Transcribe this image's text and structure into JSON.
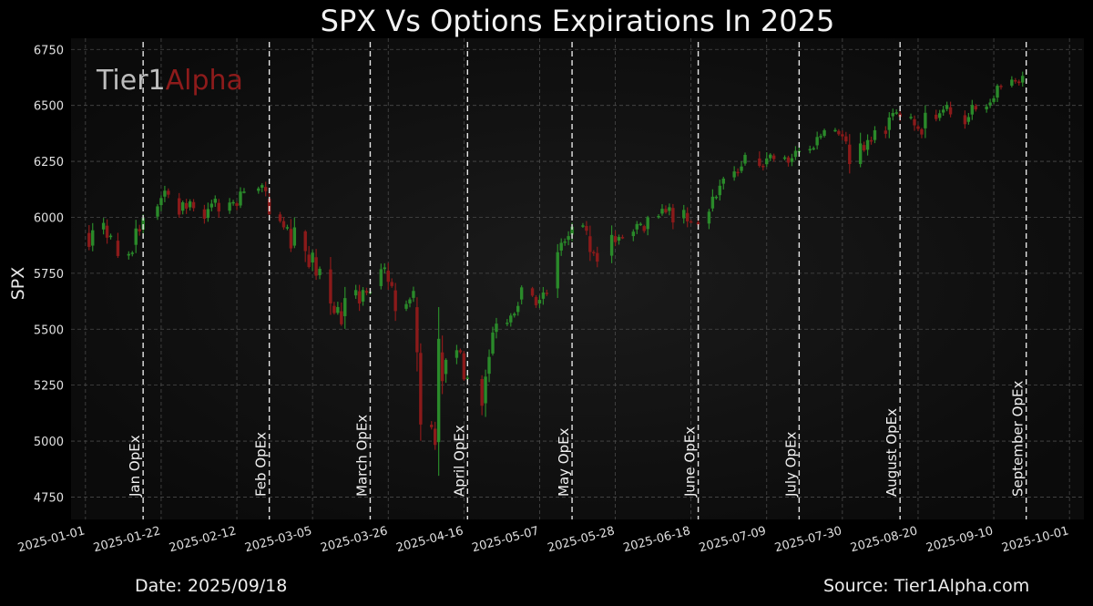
{
  "chart_data": {
    "type": "candlestick",
    "title": "SPX Vs Options Expirations In 2025",
    "ylabel": "SPX",
    "xlabel": "",
    "ylim": [
      4650,
      6800
    ],
    "xlim": [
      "2024-12-28",
      "2025-10-05"
    ],
    "grid": true,
    "yticks": [
      4750,
      5000,
      5250,
      5500,
      5750,
      6000,
      6250,
      6500,
      6750
    ],
    "xticks": [
      "2025-01-01",
      "2025-01-22",
      "2025-02-12",
      "2025-03-05",
      "2025-03-26",
      "2025-04-16",
      "2025-05-07",
      "2025-05-28",
      "2025-06-18",
      "2025-07-09",
      "2025-07-30",
      "2025-08-20",
      "2025-09-10",
      "2025-10-01"
    ],
    "opex": [
      {
        "date": "2025-01-17",
        "label": "Jan OpEx"
      },
      {
        "date": "2025-02-21",
        "label": "Feb OpEx"
      },
      {
        "date": "2025-03-21",
        "label": "March OpEx"
      },
      {
        "date": "2025-04-17",
        "label": "April OpEx"
      },
      {
        "date": "2025-05-16",
        "label": "May OpEx"
      },
      {
        "date": "2025-06-20",
        "label": "June OpEx"
      },
      {
        "date": "2025-07-18",
        "label": "July OpEx"
      },
      {
        "date": "2025-08-15",
        "label": "August OpEx"
      },
      {
        "date": "2025-09-19",
        "label": "September OpEx"
      }
    ],
    "closes": [
      [
        "2025-01-02",
        5868
      ],
      [
        "2025-01-03",
        5942
      ],
      [
        "2025-01-06",
        5975
      ],
      [
        "2025-01-07",
        5909
      ],
      [
        "2025-01-08",
        5918
      ],
      [
        "2025-01-10",
        5827
      ],
      [
        "2025-01-13",
        5836
      ],
      [
        "2025-01-14",
        5842
      ],
      [
        "2025-01-15",
        5950
      ],
      [
        "2025-01-16",
        5937
      ],
      [
        "2025-01-17",
        5997
      ],
      [
        "2025-01-21",
        6049
      ],
      [
        "2025-01-22",
        6086
      ],
      [
        "2025-01-23",
        6119
      ],
      [
        "2025-01-24",
        6101
      ],
      [
        "2025-01-27",
        6012
      ],
      [
        "2025-01-28",
        6067
      ],
      [
        "2025-01-29",
        6039
      ],
      [
        "2025-01-30",
        6071
      ],
      [
        "2025-01-31",
        6041
      ],
      [
        "2025-02-03",
        5994
      ],
      [
        "2025-02-04",
        6037
      ],
      [
        "2025-02-05",
        6061
      ],
      [
        "2025-02-06",
        6083
      ],
      [
        "2025-02-07",
        6026
      ],
      [
        "2025-02-10",
        6066
      ],
      [
        "2025-02-11",
        6068
      ],
      [
        "2025-02-12",
        6051
      ],
      [
        "2025-02-13",
        6115
      ],
      [
        "2025-02-14",
        6115
      ],
      [
        "2025-02-18",
        6129
      ],
      [
        "2025-02-19",
        6144
      ],
      [
        "2025-02-20",
        6117
      ],
      [
        "2025-02-21",
        6013
      ],
      [
        "2025-02-24",
        5983
      ],
      [
        "2025-02-25",
        5955
      ],
      [
        "2025-02-26",
        5956
      ],
      [
        "2025-02-27",
        5861
      ],
      [
        "2025-02-28",
        5955
      ],
      [
        "2025-03-03",
        5849
      ],
      [
        "2025-03-04",
        5778
      ],
      [
        "2025-03-05",
        5842
      ],
      [
        "2025-03-06",
        5739
      ],
      [
        "2025-03-07",
        5770
      ],
      [
        "2025-03-10",
        5615
      ],
      [
        "2025-03-11",
        5572
      ],
      [
        "2025-03-12",
        5599
      ],
      [
        "2025-03-13",
        5522
      ],
      [
        "2025-03-14",
        5639
      ],
      [
        "2025-03-17",
        5675
      ],
      [
        "2025-03-18",
        5615
      ],
      [
        "2025-03-19",
        5675
      ],
      [
        "2025-03-20",
        5663
      ],
      [
        "2025-03-21",
        5667
      ],
      [
        "2025-03-24",
        5768
      ],
      [
        "2025-03-25",
        5776
      ],
      [
        "2025-03-26",
        5712
      ],
      [
        "2025-03-27",
        5693
      ],
      [
        "2025-03-28",
        5581
      ],
      [
        "2025-03-31",
        5612
      ],
      [
        "2025-04-01",
        5633
      ],
      [
        "2025-04-02",
        5671
      ],
      [
        "2025-04-03",
        5397
      ],
      [
        "2025-04-04",
        5074
      ],
      [
        "2025-04-07",
        5062
      ],
      [
        "2025-04-08",
        4983
      ],
      [
        "2025-04-09",
        5457
      ],
      [
        "2025-04-10",
        5268
      ],
      [
        "2025-04-11",
        5363
      ],
      [
        "2025-04-14",
        5406
      ],
      [
        "2025-04-15",
        5397
      ],
      [
        "2025-04-16",
        5276
      ],
      [
        "2025-04-17",
        5283
      ],
      [
        "2025-04-21",
        5158
      ],
      [
        "2025-04-22",
        5288
      ],
      [
        "2025-04-23",
        5376
      ],
      [
        "2025-04-24",
        5485
      ],
      [
        "2025-04-25",
        5525
      ],
      [
        "2025-04-28",
        5529
      ],
      [
        "2025-04-29",
        5561
      ],
      [
        "2025-04-30",
        5569
      ],
      [
        "2025-05-01",
        5604
      ],
      [
        "2025-05-02",
        5687
      ],
      [
        "2025-05-05",
        5650
      ],
      [
        "2025-05-06",
        5607
      ],
      [
        "2025-05-07",
        5631
      ],
      [
        "2025-05-08",
        5664
      ],
      [
        "2025-05-09",
        5660
      ],
      [
        "2025-05-12",
        5844
      ],
      [
        "2025-05-13",
        5886
      ],
      [
        "2025-05-14",
        5892
      ],
      [
        "2025-05-15",
        5916
      ],
      [
        "2025-05-16",
        5958
      ],
      [
        "2025-05-19",
        5964
      ],
      [
        "2025-05-20",
        5940
      ],
      [
        "2025-05-21",
        5845
      ],
      [
        "2025-05-22",
        5842
      ],
      [
        "2025-05-23",
        5802
      ],
      [
        "2025-05-27",
        5921
      ],
      [
        "2025-05-28",
        5889
      ],
      [
        "2025-05-29",
        5912
      ],
      [
        "2025-05-30",
        5911
      ],
      [
        "2025-06-02",
        5936
      ],
      [
        "2025-06-03",
        5970
      ],
      [
        "2025-06-04",
        5971
      ],
      [
        "2025-06-05",
        5939
      ],
      [
        "2025-06-06",
        6000
      ],
      [
        "2025-06-09",
        6006
      ],
      [
        "2025-06-10",
        6038
      ],
      [
        "2025-06-11",
        6022
      ],
      [
        "2025-06-12",
        6045
      ],
      [
        "2025-06-13",
        5977
      ],
      [
        "2025-06-16",
        6033
      ],
      [
        "2025-06-17",
        5982
      ],
      [
        "2025-06-18",
        5981
      ],
      [
        "2025-06-20",
        5967
      ],
      [
        "2025-06-23",
        6025
      ],
      [
        "2025-06-24",
        6092
      ],
      [
        "2025-06-25",
        6092
      ],
      [
        "2025-06-26",
        6141
      ],
      [
        "2025-06-27",
        6173
      ],
      [
        "2025-06-30",
        6205
      ],
      [
        "2025-07-01",
        6198
      ],
      [
        "2025-07-02",
        6227
      ],
      [
        "2025-07-03",
        6279
      ],
      [
        "2025-07-07",
        6230
      ],
      [
        "2025-07-08",
        6226
      ],
      [
        "2025-07-09",
        6263
      ],
      [
        "2025-07-10",
        6280
      ],
      [
        "2025-07-11",
        6260
      ],
      [
        "2025-07-14",
        6268
      ],
      [
        "2025-07-15",
        6244
      ],
      [
        "2025-07-16",
        6264
      ],
      [
        "2025-07-17",
        6297
      ],
      [
        "2025-07-18",
        6297
      ],
      [
        "2025-07-21",
        6305
      ],
      [
        "2025-07-22",
        6309
      ],
      [
        "2025-07-23",
        6359
      ],
      [
        "2025-07-24",
        6363
      ],
      [
        "2025-07-25",
        6389
      ],
      [
        "2025-07-28",
        6390
      ],
      [
        "2025-07-29",
        6371
      ],
      [
        "2025-07-30",
        6362
      ],
      [
        "2025-07-31",
        6339
      ],
      [
        "2025-08-01",
        6238
      ],
      [
        "2025-08-04",
        6330
      ],
      [
        "2025-08-05",
        6299
      ],
      [
        "2025-08-06",
        6345
      ],
      [
        "2025-08-07",
        6340
      ],
      [
        "2025-08-08",
        6389
      ],
      [
        "2025-08-11",
        6373
      ],
      [
        "2025-08-12",
        6446
      ],
      [
        "2025-08-13",
        6466
      ],
      [
        "2025-08-14",
        6469
      ],
      [
        "2025-08-15",
        6449
      ],
      [
        "2025-08-18",
        6449
      ],
      [
        "2025-08-19",
        6411
      ],
      [
        "2025-08-20",
        6395
      ],
      [
        "2025-08-21",
        6370
      ],
      [
        "2025-08-22",
        6467
      ],
      [
        "2025-08-25",
        6439
      ],
      [
        "2025-08-26",
        6465
      ],
      [
        "2025-08-27",
        6481
      ],
      [
        "2025-08-28",
        6502
      ],
      [
        "2025-08-29",
        6460
      ],
      [
        "2025-09-02",
        6416
      ],
      [
        "2025-09-03",
        6448
      ],
      [
        "2025-09-04",
        6502
      ],
      [
        "2025-09-05",
        6482
      ],
      [
        "2025-09-08",
        6495
      ],
      [
        "2025-09-09",
        6513
      ],
      [
        "2025-09-10",
        6532
      ],
      [
        "2025-09-11",
        6588
      ],
      [
        "2025-09-12",
        6584
      ],
      [
        "2025-09-15",
        6615
      ],
      [
        "2025-09-16",
        6607
      ],
      [
        "2025-09-17",
        6600
      ],
      [
        "2025-09-18",
        6632
      ]
    ]
  },
  "watermark": {
    "part1": "Tier1",
    "part2": "Alpha"
  },
  "footer": {
    "date": "Date: 2025/09/18",
    "source": "Source: Tier1Alpha.com"
  },
  "colors": {
    "up": "#2a8a2a",
    "down": "#8b1a1a",
    "grid": "#4a4a4a",
    "brand": "#8e1b1b",
    "text": "#e8e8e8"
  }
}
